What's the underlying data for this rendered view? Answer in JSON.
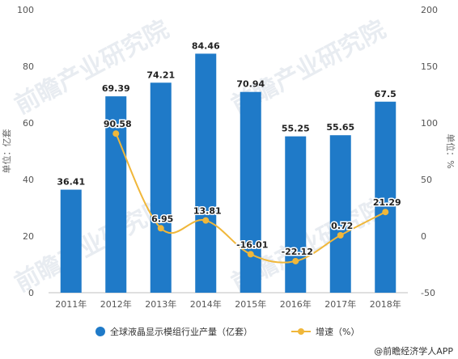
{
  "chart_data": {
    "type": "bar",
    "categories": [
      "2011年",
      "2012年",
      "2013年",
      "2014年",
      "2015年",
      "2016年",
      "2017年",
      "2018年"
    ],
    "series": [
      {
        "name": "全球液晶显示模组行业产量（亿套）",
        "type": "bar",
        "axis": "left",
        "color": "#1f7ac8",
        "values": [
          36.41,
          69.39,
          74.21,
          84.46,
          70.94,
          55.25,
          55.65,
          67.5
        ],
        "labels": [
          "36.41",
          "69.39",
          "74.21",
          "84.46",
          "70.94",
          "55.25",
          "55.65",
          "67.5"
        ]
      },
      {
        "name": "增速（%）",
        "type": "line",
        "axis": "right",
        "color": "#f0b73a",
        "values": [
          null,
          90.58,
          6.95,
          13.81,
          -16.01,
          -22.12,
          0.72,
          21.29
        ],
        "labels": [
          "",
          "90.58",
          "6.95",
          "13.81",
          "-16.01",
          "-22.12",
          "0.72",
          "21.29"
        ]
      }
    ],
    "ylabel": "单位：亿套",
    "y2label": "单位：%",
    "ylim": [
      0,
      100
    ],
    "yticks": [
      "0",
      "20",
      "40",
      "60",
      "80",
      "100"
    ],
    "y2lim": [
      -50,
      200
    ],
    "y2ticks": [
      "-50",
      "0",
      "50",
      "100",
      "150",
      "200"
    ],
    "grid": false,
    "legend": "bottom-center"
  },
  "footer": {
    "source": "@前瞻经济学人APP"
  },
  "watermark": {
    "text": "前瞻产业研究院"
  }
}
